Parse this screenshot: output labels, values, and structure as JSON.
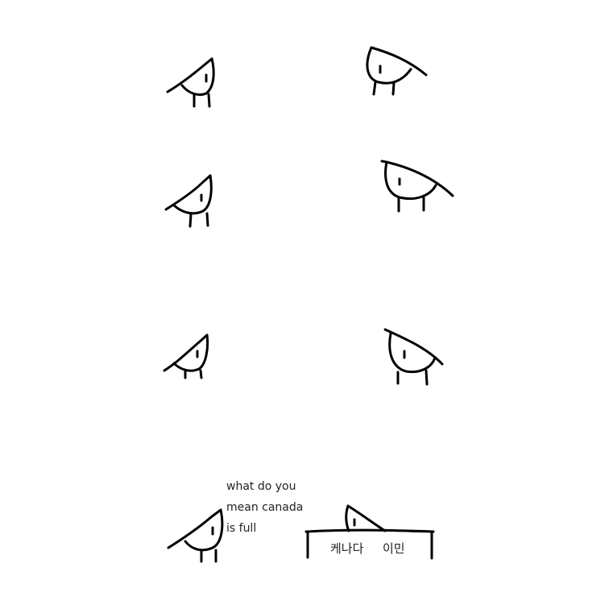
{
  "speech": {
    "line1": "what do you",
    "line2": "mean canada",
    "line3": "is full"
  },
  "desk": {
    "label_left": "케나다",
    "label_right": "이민"
  },
  "colors": {
    "background": "#ffffff",
    "ink": "#000000"
  }
}
